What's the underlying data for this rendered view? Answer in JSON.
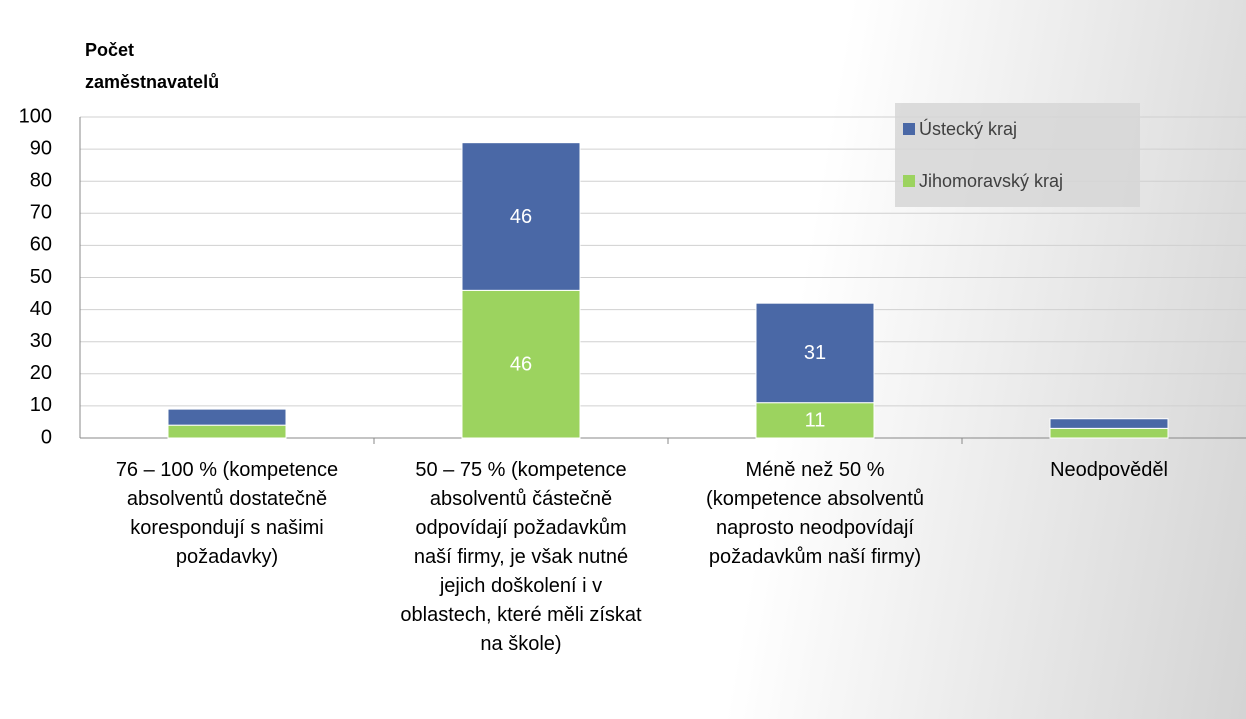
{
  "chart_data": {
    "type": "stacked_bar",
    "y_label": "Počet zaměstnavatelů",
    "categories": [
      "76 – 100 % (kompetence absolventů dostatečně korespondují s našimi požadavky)",
      "50 – 75 % (kompetence absolventů částečně odpovídají požadavkům naší firmy, je však nutné jejich doškolení i v oblastech, které měli získat na škole)",
      "Méně než 50 % (kompetence absolventů naprosto neodpovídají požadavkům naší firmy)",
      "Neodpověděl"
    ],
    "series": [
      {
        "name": "Jihomoravský kraj",
        "color": "#9cd35f",
        "values": [
          4,
          46,
          11,
          3
        ],
        "value_labels": [
          null,
          "46",
          "11",
          null
        ]
      },
      {
        "name": "Ústecký kraj",
        "color": "#4a68a6",
        "values": [
          5,
          46,
          31,
          3
        ],
        "value_labels": [
          null,
          "46",
          "31",
          null
        ]
      }
    ],
    "ylim": [
      0,
      100
    ],
    "yticks": [
      0,
      10,
      20,
      30,
      40,
      50,
      60,
      70,
      80,
      90,
      100
    ],
    "grid": true,
    "legend": "top-right"
  }
}
